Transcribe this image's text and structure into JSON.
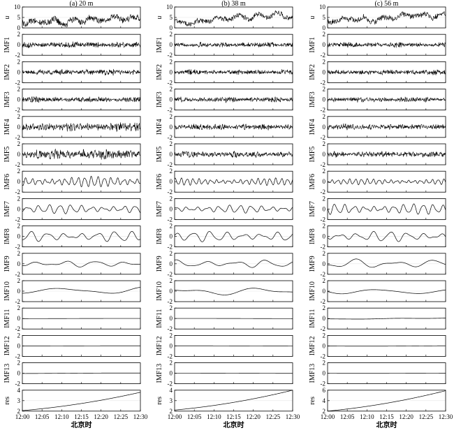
{
  "chart_data": [
    {
      "type": "line",
      "title": "(a) 20 m",
      "xlabel": "北京时",
      "x_ticks": [
        "12:00",
        "12:05",
        "12:10",
        "12:15",
        "12:20",
        "12:25",
        "12:30"
      ],
      "series": [
        {
          "name": "u",
          "ylim": [
            0,
            10
          ],
          "yticks": [
            "10",
            "5",
            "0"
          ],
          "level": 2.8,
          "trend": 2.4,
          "amp": 1.5,
          "cycles": 0,
          "kind": "signal"
        },
        {
          "name": "IMF1",
          "ylim": [
            -2,
            2
          ],
          "yticks": [
            "2",
            "0",
            "-2"
          ],
          "amp": 0.35,
          "cycles": 200,
          "kind": "noise"
        },
        {
          "name": "IMF2",
          "ylim": [
            -2,
            2
          ],
          "yticks": [
            "2",
            "0",
            "-2"
          ],
          "amp": 0.35,
          "cycles": 130,
          "kind": "noise"
        },
        {
          "name": "IMF3",
          "ylim": [
            -2,
            2
          ],
          "yticks": [
            "2",
            "0",
            "-2"
          ],
          "amp": 0.35,
          "cycles": 80,
          "kind": "noise"
        },
        {
          "name": "IMF4",
          "ylim": [
            -2,
            2
          ],
          "yticks": [
            "2",
            "0",
            "-2"
          ],
          "amp": 0.5,
          "cycles": 50,
          "kind": "noise"
        },
        {
          "name": "IMF5",
          "ylim": [
            -2,
            2
          ],
          "yticks": [
            "2",
            "0",
            "-2"
          ],
          "amp": 0.6,
          "cycles": 30,
          "kind": "noise"
        },
        {
          "name": "IMF6",
          "ylim": [
            -2,
            2
          ],
          "yticks": [
            "2",
            "0",
            "-2"
          ],
          "amp": 0.8,
          "cycles": 18,
          "kind": "wave"
        },
        {
          "name": "IMF7",
          "ylim": [
            -2,
            2
          ],
          "yticks": [
            "2",
            "0",
            "-2"
          ],
          "amp": 0.7,
          "cycles": 11,
          "kind": "wave"
        },
        {
          "name": "IMF8",
          "ylim": [
            -2,
            2
          ],
          "yticks": [
            "2",
            "0",
            "-2"
          ],
          "amp": 0.8,
          "cycles": 7,
          "kind": "wave"
        },
        {
          "name": "IMF9",
          "ylim": [
            -2,
            2
          ],
          "yticks": [
            "2",
            "0",
            "-2"
          ],
          "amp": 0.5,
          "cycles": 4,
          "kind": "wave"
        },
        {
          "name": "IMF10",
          "ylim": [
            -2,
            2
          ],
          "yticks": [
            "2",
            "0",
            "-2"
          ],
          "amp": 0.6,
          "cycles": 1.4,
          "kind": "wave"
        },
        {
          "name": "IMF11",
          "ylim": [
            -2,
            2
          ],
          "yticks": [
            "2",
            "0",
            "-2"
          ],
          "amp": 0.02,
          "cycles": 0.5,
          "kind": "flat"
        },
        {
          "name": "IMF12",
          "ylim": [
            -2,
            2
          ],
          "yticks": [
            "2",
            "0",
            "-2"
          ],
          "amp": 0.02,
          "cycles": 0.5,
          "kind": "flat"
        },
        {
          "name": "IMF13",
          "ylim": [
            -2,
            2
          ],
          "yticks": [
            "2",
            "0",
            "-2"
          ],
          "amp": 0.05,
          "cycles": 0.5,
          "kind": "flat"
        },
        {
          "name": "res",
          "ylim": [
            2,
            4
          ],
          "yticks": [
            "4",
            "3",
            "2"
          ],
          "start": 2.05,
          "end": 3.8,
          "kind": "trend"
        }
      ]
    },
    {
      "type": "line",
      "title": "(b) 38 m",
      "xlabel": "北京时",
      "x_ticks": [
        "12:00",
        "12:05",
        "12:10",
        "12:15",
        "12:20",
        "12:25",
        "12:30"
      ],
      "series": [
        {
          "name": "u",
          "ylim": [
            0,
            10
          ],
          "yticks": [
            "10",
            "5",
            "0"
          ],
          "level": 2.8,
          "trend": 3.2,
          "amp": 1.2,
          "cycles": 0,
          "kind": "signal"
        },
        {
          "name": "IMF1",
          "ylim": [
            -2,
            2
          ],
          "yticks": [
            "2",
            "0",
            "-2"
          ],
          "amp": 0.3,
          "cycles": 200,
          "kind": "noise"
        },
        {
          "name": "IMF2",
          "ylim": [
            -2,
            2
          ],
          "yticks": [
            "2",
            "0",
            "-2"
          ],
          "amp": 0.3,
          "cycles": 130,
          "kind": "noise"
        },
        {
          "name": "IMF3",
          "ylim": [
            -2,
            2
          ],
          "yticks": [
            "2",
            "0",
            "-2"
          ],
          "amp": 0.3,
          "cycles": 80,
          "kind": "noise"
        },
        {
          "name": "IMF4",
          "ylim": [
            -2,
            2
          ],
          "yticks": [
            "2",
            "0",
            "-2"
          ],
          "amp": 0.35,
          "cycles": 50,
          "kind": "noise"
        },
        {
          "name": "IMF5",
          "ylim": [
            -2,
            2
          ],
          "yticks": [
            "2",
            "0",
            "-2"
          ],
          "amp": 0.35,
          "cycles": 30,
          "kind": "noise"
        },
        {
          "name": "IMF6",
          "ylim": [
            -2,
            2
          ],
          "yticks": [
            "2",
            "0",
            "-2"
          ],
          "amp": 0.55,
          "cycles": 20,
          "kind": "wave"
        },
        {
          "name": "IMF7",
          "ylim": [
            -2,
            2
          ],
          "yticks": [
            "2",
            "0",
            "-2"
          ],
          "amp": 0.6,
          "cycles": 11,
          "kind": "wave"
        },
        {
          "name": "IMF8",
          "ylim": [
            -2,
            2
          ],
          "yticks": [
            "2",
            "0",
            "-2"
          ],
          "amp": 0.8,
          "cycles": 7,
          "kind": "wave"
        },
        {
          "name": "IMF9",
          "ylim": [
            -2,
            2
          ],
          "yticks": [
            "2",
            "0",
            "-2"
          ],
          "amp": 0.6,
          "cycles": 4,
          "kind": "wave"
        },
        {
          "name": "IMF10",
          "ylim": [
            -2,
            2
          ],
          "yticks": [
            "2",
            "0",
            "-2"
          ],
          "amp": 0.6,
          "cycles": 1.5,
          "kind": "wave"
        },
        {
          "name": "IMF11",
          "ylim": [
            -2,
            2
          ],
          "yticks": [
            "2",
            "0",
            "-2"
          ],
          "amp": 0.02,
          "cycles": 0.5,
          "kind": "flat"
        },
        {
          "name": "IMF12",
          "ylim": [
            -2,
            2
          ],
          "yticks": [
            "2",
            "0",
            "-2"
          ],
          "amp": 0.02,
          "cycles": 0.5,
          "kind": "flat"
        },
        {
          "name": "IMF13",
          "ylim": [
            -2,
            2
          ],
          "yticks": [
            "2",
            "0",
            "-2"
          ],
          "amp": 0.02,
          "cycles": 0.5,
          "kind": "flat"
        },
        {
          "name": "res",
          "ylim": [
            2,
            4
          ],
          "yticks": [
            "4",
            "3",
            "2"
          ],
          "start": 2.1,
          "end": 4.0,
          "kind": "trend"
        }
      ]
    },
    {
      "type": "line",
      "title": "(c) 56 m",
      "xlabel": "北京时",
      "x_ticks": [
        "12:00",
        "12:05",
        "12:10",
        "12:15",
        "12:20",
        "12:25",
        "12:30"
      ],
      "series": [
        {
          "name": "u",
          "ylim": [
            0,
            10
          ],
          "yticks": [
            "10",
            "5",
            "0"
          ],
          "level": 3.0,
          "trend": 3.8,
          "amp": 1.2,
          "cycles": 0,
          "kind": "signal"
        },
        {
          "name": "IMF1",
          "ylim": [
            -2,
            2
          ],
          "yticks": [
            "2",
            "0",
            "-2"
          ],
          "amp": 0.3,
          "cycles": 200,
          "kind": "noise"
        },
        {
          "name": "IMF2",
          "ylim": [
            -2,
            2
          ],
          "yticks": [
            "2",
            "0",
            "-2"
          ],
          "amp": 0.3,
          "cycles": 130,
          "kind": "noise"
        },
        {
          "name": "IMF3",
          "ylim": [
            -2,
            2
          ],
          "yticks": [
            "2",
            "0",
            "-2"
          ],
          "amp": 0.3,
          "cycles": 80,
          "kind": "noise"
        },
        {
          "name": "IMF4",
          "ylim": [
            -2,
            2
          ],
          "yticks": [
            "2",
            "0",
            "-2"
          ],
          "amp": 0.35,
          "cycles": 50,
          "kind": "noise"
        },
        {
          "name": "IMF5",
          "ylim": [
            -2,
            2
          ],
          "yticks": [
            "2",
            "0",
            "-2"
          ],
          "amp": 0.35,
          "cycles": 30,
          "kind": "noise"
        },
        {
          "name": "IMF6",
          "ylim": [
            -2,
            2
          ],
          "yticks": [
            "2",
            "0",
            "-2"
          ],
          "amp": 0.45,
          "cycles": 20,
          "kind": "wave"
        },
        {
          "name": "IMF7",
          "ylim": [
            -2,
            2
          ],
          "yticks": [
            "2",
            "0",
            "-2"
          ],
          "amp": 0.8,
          "cycles": 12,
          "kind": "wave"
        },
        {
          "name": "IMF8",
          "ylim": [
            -2,
            2
          ],
          "yticks": [
            "2",
            "0",
            "-2"
          ],
          "amp": 0.8,
          "cycles": 7,
          "kind": "wave"
        },
        {
          "name": "IMF9",
          "ylim": [
            -2,
            2
          ],
          "yticks": [
            "2",
            "0",
            "-2"
          ],
          "amp": 0.7,
          "cycles": 3,
          "kind": "wave"
        },
        {
          "name": "IMF10",
          "ylim": [
            -2,
            2
          ],
          "yticks": [
            "2",
            "0",
            "-2"
          ],
          "amp": 0.5,
          "cycles": 1.6,
          "kind": "wave"
        },
        {
          "name": "IMF11",
          "ylim": [
            -2,
            2
          ],
          "yticks": [
            "2",
            "0",
            "-2"
          ],
          "amp": 0.15,
          "cycles": 0.8,
          "kind": "wave"
        },
        {
          "name": "IMF12",
          "ylim": [
            -2,
            2
          ],
          "yticks": [
            "2",
            "0",
            "-2"
          ],
          "amp": 0.05,
          "cycles": 0.5,
          "kind": "flat"
        },
        {
          "name": "IMF13",
          "ylim": [
            -2,
            2
          ],
          "yticks": [
            "2",
            "0",
            "-2"
          ],
          "amp": 0.02,
          "cycles": 0.5,
          "kind": "flat"
        },
        {
          "name": "res",
          "ylim": [
            2,
            6
          ],
          "yticks": [
            "6",
            "4",
            "2"
          ],
          "start": 2.0,
          "end": 5.9,
          "kind": "trend"
        }
      ]
    }
  ]
}
